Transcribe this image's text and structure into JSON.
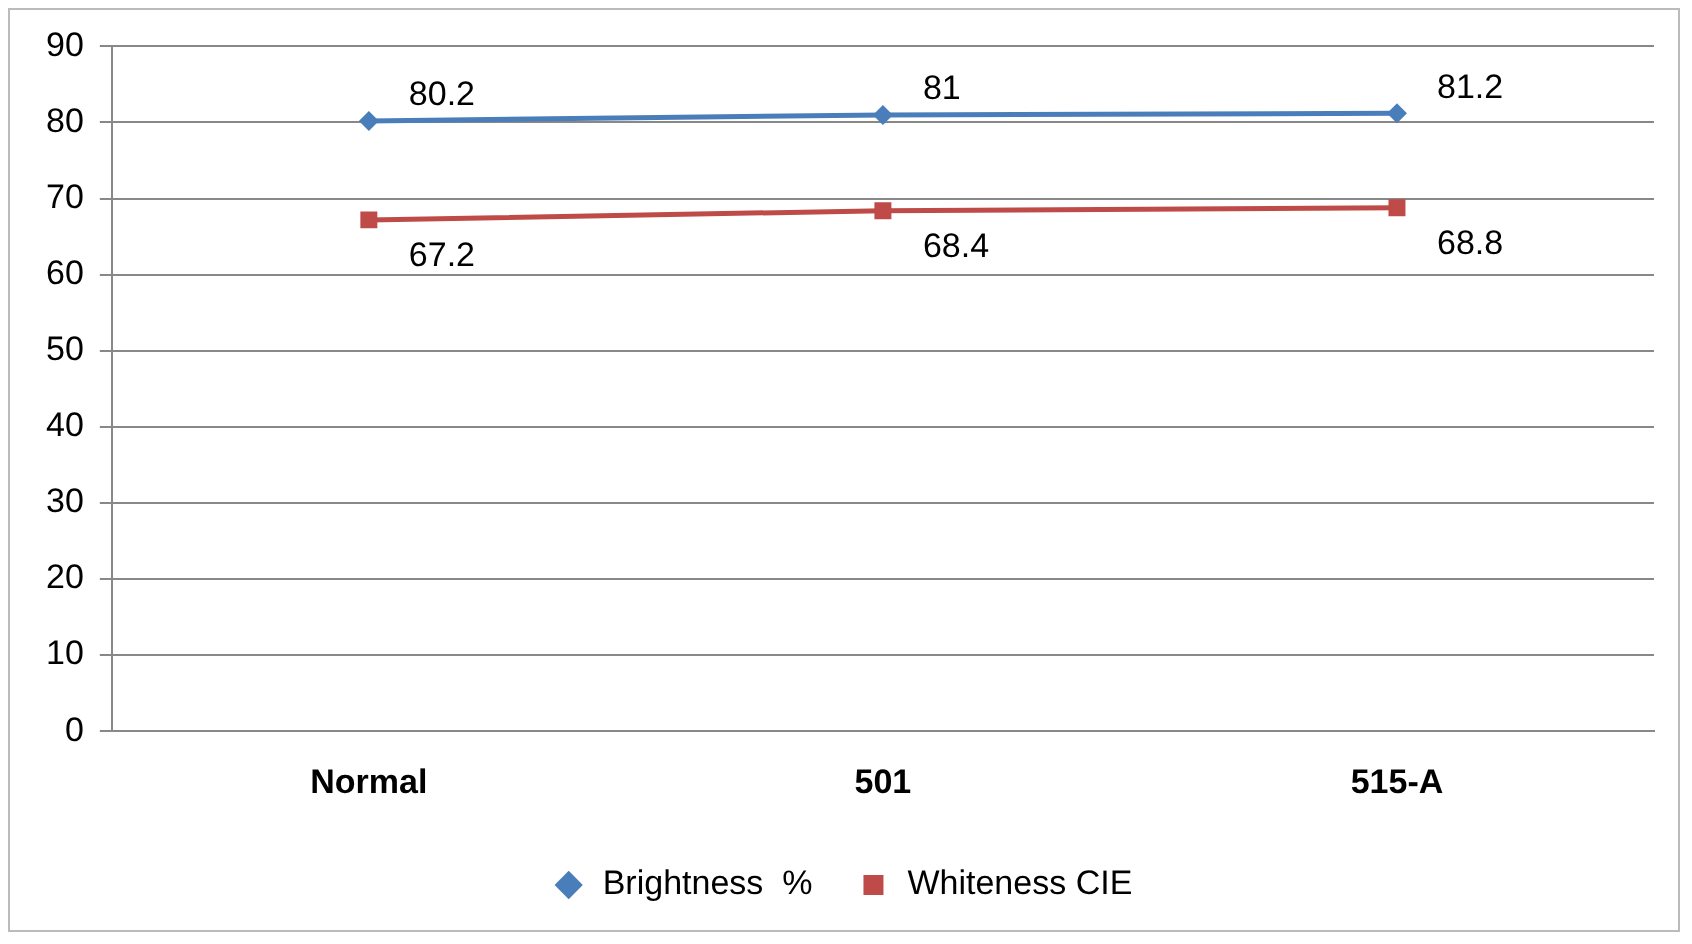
{
  "chart_data": {
    "type": "line",
    "categories": [
      "Normal",
      "501",
      "515-A"
    ],
    "series": [
      {
        "name": "Brightness  %",
        "color": "#4a7ebb",
        "marker": "diamond",
        "values": [
          80.2,
          81,
          81.2
        ]
      },
      {
        "name": "Whiteness CIE",
        "color": "#be4b48",
        "marker": "square",
        "values": [
          67.2,
          68.4,
          68.8
        ]
      }
    ],
    "ylim": [
      0,
      90
    ],
    "yticks": [
      0,
      10,
      20,
      30,
      40,
      50,
      60,
      70,
      80,
      90
    ],
    "grid": "y",
    "legend": "bottom",
    "data_labels": true
  }
}
